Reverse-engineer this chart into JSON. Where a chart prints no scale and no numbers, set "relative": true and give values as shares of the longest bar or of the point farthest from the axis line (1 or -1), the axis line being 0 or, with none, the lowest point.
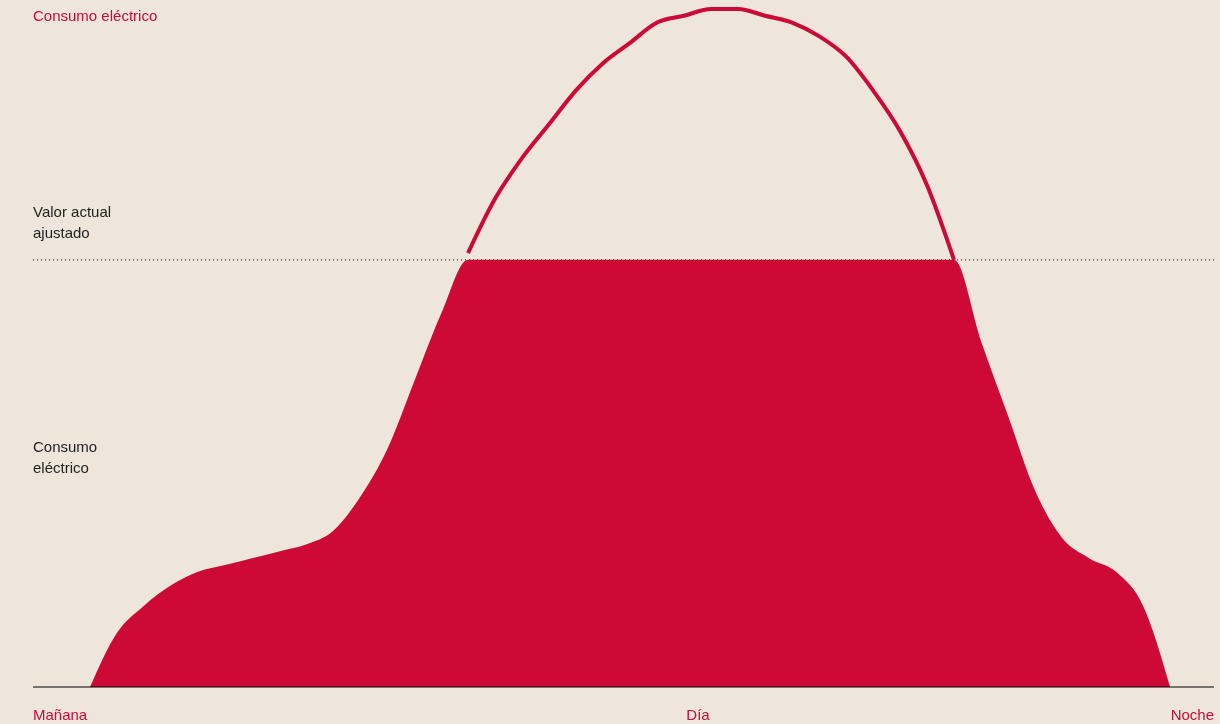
{
  "chart_data": {
    "type": "line",
    "relative": true,
    "ylabel": "Consumo eléctrico",
    "categories": [
      null,
      null,
      null,
      null,
      null,
      null,
      null,
      null,
      null,
      null,
      null,
      null,
      null,
      null,
      null,
      null,
      null,
      null,
      null,
      null,
      null,
      null,
      null,
      null,
      null,
      null,
      null,
      null,
      null,
      null,
      null,
      null,
      null,
      null,
      null,
      null,
      null,
      null,
      null,
      null,
      null
    ],
    "series": [
      {
        "type": "area",
        "color": "#cc0a35",
        "values": [
          0,
          0.08,
          0.12,
          0.15,
          0.17,
          0.18,
          0.19,
          0.2,
          0.21,
          0.23,
          0.28,
          0.35,
          0.45,
          0.55,
          0.63,
          0.63,
          0.63,
          0.63,
          0.63,
          0.63,
          0.63,
          0.63,
          0.63,
          0.63,
          0.63,
          0.63,
          0.63,
          0.63,
          0.63,
          0.63,
          0.63,
          0.63,
          0.63,
          0.51,
          0.4,
          0.29,
          0.22,
          0.19,
          0.17,
          0.12,
          0
        ]
      },
      {
        "color": "#cc0a35",
        "values": [
          null,
          null,
          null,
          null,
          null,
          null,
          null,
          null,
          null,
          null,
          null,
          null,
          null,
          null,
          0.64,
          0.72,
          0.78,
          0.83,
          0.88,
          0.92,
          0.95,
          0.98,
          0.99,
          1.0,
          1.0,
          0.99,
          0.98,
          0.96,
          0.93,
          0.88,
          0.82,
          0.74,
          0.63,
          null,
          null,
          null,
          null,
          null,
          null,
          null,
          null
        ]
      }
    ],
    "ref_lines": [
      {
        "axis": "y",
        "value": 0.63,
        "label": "Valor actual\najustado",
        "color": "#333333",
        "line_style": "dotted"
      }
    ],
    "annotations": [
      "Consumo\neléctrico",
      "Mañana",
      "Día",
      "Noche"
    ]
  }
}
